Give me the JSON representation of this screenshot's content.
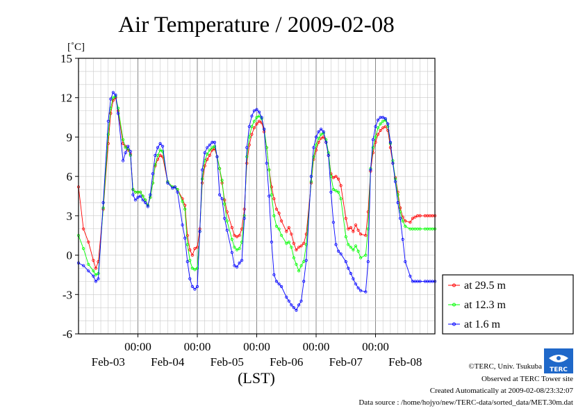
{
  "chart_data": {
    "type": "line",
    "title": "Air Temperature / 2009-02-08",
    "ylabel": "[˚C]",
    "xlabel": "(LST)",
    "ylim": [
      -6,
      15
    ],
    "yticks": [
      "15",
      "12",
      "9",
      "6",
      "3",
      "0",
      "-3",
      "-6"
    ],
    "x_time_labels": [
      "00:00",
      "00:00",
      "00:00",
      "00:00",
      "00:00"
    ],
    "x_day_labels": [
      "Feb-03",
      "Feb-04",
      "Feb-05",
      "Feb-06",
      "Feb-07",
      "Feb-08"
    ],
    "x_range_hours": [
      0,
      144
    ],
    "grid": true,
    "legend_position": "bottom-right outside",
    "x_unit": "hours from 2009-02-03 00:00 LST",
    "series": [
      {
        "name": "at 29.5 m",
        "color": "#ff0000",
        "x": [
          0,
          2,
          4,
          6,
          7,
          8,
          10,
          12,
          13,
          14,
          15,
          16,
          18,
          19,
          20,
          21,
          22,
          23,
          24,
          25,
          26,
          27,
          28,
          29,
          30,
          31,
          32,
          33,
          34,
          36,
          38,
          39,
          40,
          42,
          43,
          44,
          45,
          46,
          47,
          48,
          49,
          50,
          51,
          52,
          53,
          54,
          55,
          56,
          57,
          58,
          59,
          60,
          62,
          63,
          64,
          65,
          66,
          67,
          68,
          69,
          70,
          71,
          72,
          73,
          74,
          75,
          76,
          77,
          78,
          79,
          80,
          81,
          82,
          84,
          85,
          86,
          87,
          88,
          89,
          90,
          91,
          92,
          94,
          95,
          96,
          97,
          98,
          99,
          100,
          101,
          102,
          103,
          104,
          105,
          106,
          108,
          109,
          110,
          111,
          112,
          113,
          114,
          116,
          117,
          118,
          119,
          120,
          121,
          122,
          123,
          124,
          125,
          126,
          127,
          128,
          129,
          130,
          131,
          132,
          134,
          135,
          136,
          137,
          138,
          140,
          141,
          142,
          143,
          144
        ],
        "values": [
          5.2,
          2,
          1,
          -0.4,
          -1,
          -0.5,
          3.5,
          8.5,
          10.8,
          11.8,
          12,
          11,
          8.5,
          8.3,
          8.0,
          7.7,
          5,
          4.8,
          4.8,
          4.8,
          4.5,
          4.2,
          3.8,
          4.4,
          5.5,
          6.8,
          7.3,
          7.6,
          7.5,
          5.6,
          5.2,
          5.2,
          5.0,
          4.3,
          3.8,
          1.5,
          0.4,
          0,
          0.5,
          0.6,
          2,
          5.5,
          6.8,
          7.3,
          7.6,
          8.0,
          8.1,
          7.5,
          6.6,
          5.5,
          4.2,
          3.3,
          2.1,
          1.5,
          1.4,
          1.5,
          2.0,
          3.5,
          7,
          8.4,
          9.2,
          9.7,
          10.0,
          10.2,
          10.1,
          9.4,
          8.2,
          6.5,
          5.2,
          4.3,
          3.5,
          3.2,
          2.6,
          1.8,
          2.1,
          1.6,
          0.9,
          0.4,
          0.6,
          0.7,
          0.9,
          1.6,
          5.5,
          7.3,
          8.0,
          8.6,
          8.9,
          9.0,
          8.6,
          7.6,
          6.2,
          5.9,
          6.0,
          5.8,
          5.3,
          2.8,
          2.0,
          2.1,
          1.8,
          2.3,
          1.9,
          1.6,
          1.5,
          3.3,
          6.4,
          7.8,
          8.6,
          9.2,
          9.5,
          9.7,
          9.8,
          9.5,
          8.2,
          7.0,
          5.9,
          4.8,
          3.6,
          2.9,
          2.6,
          2.5,
          2.8,
          2.9,
          3.0,
          3.0,
          3.0,
          3.0,
          3.0,
          3.0,
          3.0
        ]
      },
      {
        "name": "at 12.3 m",
        "color": "#00ff00",
        "x": [
          0,
          2,
          4,
          6,
          7,
          8,
          10,
          12,
          13,
          14,
          15,
          16,
          18,
          19,
          20,
          21,
          22,
          23,
          24,
          25,
          26,
          27,
          28,
          29,
          30,
          31,
          32,
          33,
          34,
          36,
          38,
          39,
          40,
          42,
          43,
          44,
          45,
          46,
          47,
          48,
          49,
          50,
          51,
          52,
          53,
          54,
          55,
          56,
          57,
          58,
          59,
          60,
          62,
          63,
          64,
          65,
          66,
          67,
          68,
          69,
          70,
          71,
          72,
          73,
          74,
          75,
          76,
          77,
          78,
          79,
          80,
          81,
          82,
          84,
          85,
          86,
          87,
          88,
          89,
          90,
          91,
          92,
          94,
          95,
          96,
          97,
          98,
          99,
          100,
          101,
          102,
          103,
          104,
          105,
          106,
          108,
          109,
          110,
          111,
          112,
          113,
          114,
          116,
          117,
          118,
          119,
          120,
          121,
          122,
          123,
          124,
          125,
          126,
          127,
          128,
          129,
          130,
          131,
          132,
          134,
          135,
          136,
          137,
          138,
          140,
          141,
          142,
          143,
          144
        ],
        "values": [
          1.5,
          0.5,
          -0.7,
          -1.2,
          -1.5,
          -1.4,
          3.6,
          9.2,
          11.2,
          12.0,
          12.1,
          11.2,
          8.8,
          8.2,
          8.1,
          7.6,
          5,
          4.8,
          4.8,
          4.8,
          4.5,
          4.2,
          3.8,
          4.4,
          5.5,
          6.9,
          7.6,
          8.0,
          7.9,
          5.6,
          5.2,
          5.2,
          5.0,
          4.1,
          3.5,
          0.8,
          -0.4,
          -1.0,
          -1.1,
          -1.0,
          1.8,
          5.8,
          7.2,
          7.7,
          8.0,
          8.2,
          8.3,
          7.5,
          6.6,
          5.7,
          3.9,
          2.6,
          1.2,
          0.6,
          0.4,
          0.5,
          1.0,
          3.0,
          7.5,
          9.0,
          9.8,
          10.2,
          10.5,
          10.6,
          10.4,
          9.6,
          8.2,
          6.5,
          4.6,
          3.0,
          2.2,
          2.0,
          1.5,
          0.9,
          1.0,
          0.6,
          -0.2,
          -0.7,
          -1.2,
          -0.8,
          -0.5,
          0.8,
          5.6,
          7.5,
          8.4,
          8.9,
          9.2,
          9.3,
          8.8,
          7.8,
          6.0,
          5.0,
          4.9,
          4.8,
          4.3,
          1.4,
          0.8,
          0.6,
          0.4,
          0.7,
          0.3,
          -0.2,
          0.0,
          2.0,
          6.6,
          8.2,
          9.0,
          9.7,
          10.0,
          10.2,
          10.3,
          9.8,
          8.5,
          7.2,
          5.8,
          4.6,
          3.3,
          2.6,
          2.2,
          2.0,
          2.0,
          2.0,
          2.0,
          2.0,
          2.0,
          2.0,
          2.0,
          2.0,
          2.0
        ]
      },
      {
        "name": "at 1.6 m",
        "color": "#0000ff",
        "x": [
          0,
          2,
          4,
          6,
          7,
          8,
          10,
          12,
          13,
          14,
          15,
          16,
          18,
          19,
          20,
          21,
          22,
          23,
          24,
          25,
          26,
          27,
          28,
          29,
          30,
          31,
          32,
          33,
          34,
          36,
          38,
          39,
          40,
          42,
          43,
          44,
          45,
          46,
          47,
          48,
          49,
          50,
          51,
          52,
          53,
          54,
          55,
          56,
          57,
          58,
          59,
          60,
          62,
          63,
          64,
          65,
          66,
          67,
          68,
          69,
          70,
          71,
          72,
          73,
          74,
          75,
          76,
          77,
          78,
          79,
          80,
          81,
          82,
          84,
          85,
          86,
          87,
          88,
          89,
          90,
          91,
          92,
          94,
          95,
          96,
          97,
          98,
          99,
          100,
          101,
          102,
          103,
          104,
          105,
          106,
          108,
          109,
          110,
          111,
          112,
          113,
          114,
          116,
          117,
          118,
          119,
          120,
          121,
          122,
          123,
          124,
          125,
          126,
          127,
          128,
          129,
          130,
          131,
          132,
          134,
          135,
          136,
          137,
          138,
          140,
          141,
          142,
          143,
          144
        ],
        "values": [
          -0.6,
          -0.8,
          -1.2,
          -1.6,
          -2.0,
          -1.8,
          4.0,
          10.2,
          11.9,
          12.4,
          12.2,
          10.8,
          7.2,
          7.8,
          8.3,
          7.9,
          4.6,
          4.2,
          4.4,
          4.5,
          4.2,
          4.0,
          3.7,
          4.6,
          6.2,
          7.6,
          8.2,
          8.5,
          8.3,
          5.5,
          5.1,
          5.2,
          4.8,
          2.3,
          1.3,
          -0.5,
          -1.8,
          -2.4,
          -2.6,
          -2.4,
          1.8,
          6.5,
          7.8,
          8.2,
          8.4,
          8.6,
          8.6,
          7.5,
          4.6,
          4.3,
          2.8,
          1.9,
          0.2,
          -0.8,
          -0.9,
          -0.6,
          -0.4,
          2.8,
          8.2,
          9.8,
          10.6,
          11.0,
          11.1,
          10.9,
          10.5,
          9.6,
          7.0,
          4.5,
          1.0,
          -1.5,
          -2.0,
          -2.2,
          -2.4,
          -3.2,
          -3.5,
          -3.8,
          -4.0,
          -4.2,
          -3.8,
          -3.5,
          -2.0,
          -0.4,
          6.0,
          8.2,
          9.0,
          9.4,
          9.6,
          9.4,
          8.6,
          7.6,
          4.8,
          2.5,
          0.8,
          0.3,
          0.1,
          -0.5,
          -1.0,
          -1.4,
          -1.8,
          -2.2,
          -2.5,
          -2.7,
          -2.8,
          -0.5,
          6.5,
          8.8,
          9.8,
          10.3,
          10.5,
          10.5,
          10.4,
          10.0,
          8.6,
          7.0,
          5.6,
          4.0,
          2.8,
          1.2,
          -0.5,
          -1.6,
          -2.0,
          -2.0,
          -2.0,
          -2.0,
          -2.0,
          -2.0,
          -2.0,
          -2.0,
          -2.0
        ]
      }
    ]
  },
  "legend": {
    "items": [
      {
        "label": "at 29.5 m",
        "color": "#ff0000"
      },
      {
        "label": "at 12.3 m",
        "color": "#00ff00"
      },
      {
        "label": "at 1.6 m",
        "color": "#0000ff"
      }
    ]
  },
  "footer": {
    "credit": "©TERC, Univ. Tsukuba",
    "site": "Observed at TERC Tower site",
    "created": "Created Automatically at 2009-02-08/23:32:07",
    "source": "Data source : /home/hojyo/new/TERC-data/sorted_data/MET.30m.dat",
    "logo_text": "TERC"
  }
}
